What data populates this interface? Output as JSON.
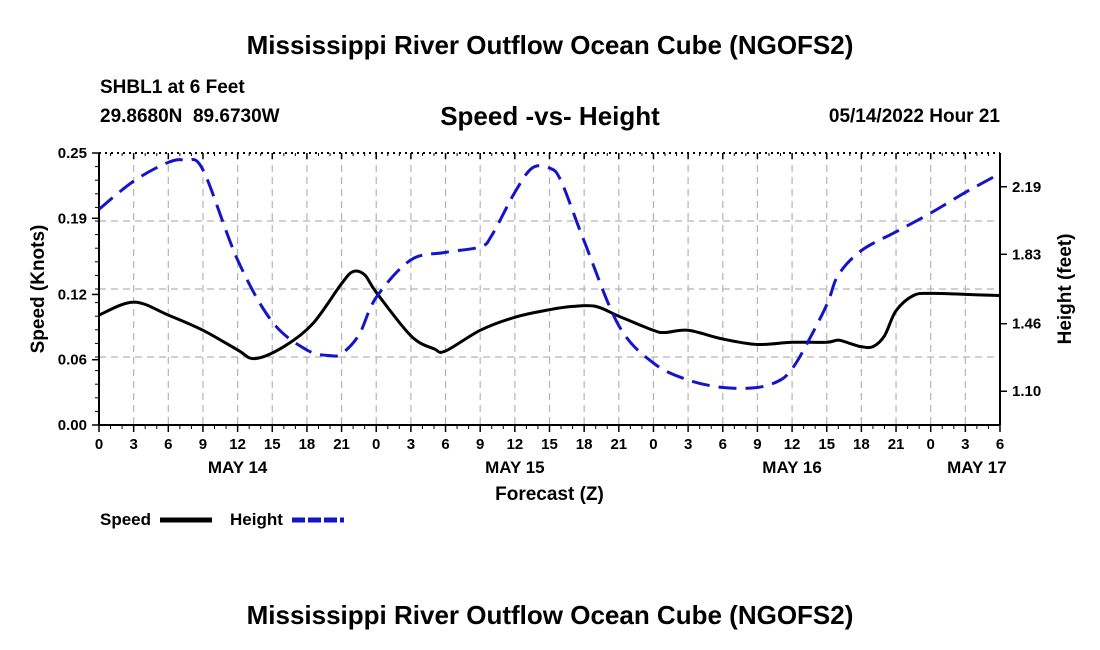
{
  "header": {
    "title": "Mississippi River Outflow Ocean Cube (NGOFS2)",
    "station": "SHBL1 at 6 Feet",
    "coords": "29.8680N  89.6730W",
    "subtitle": "Speed -vs- Height",
    "datetime": "05/14/2022 Hour 21"
  },
  "footer": {
    "title": "Mississippi River Outflow Ocean Cube (NGOFS2)"
  },
  "colors": {
    "speed": "#000000",
    "height": "#1414c8",
    "grid": "#b4b4b4"
  },
  "chart_data": {
    "type": "line",
    "title": "Speed -vs- Height",
    "xlabel": "Forecast (Z)",
    "ylabel": "Speed (Knots)",
    "y2label": "Height (feet)",
    "x_unit": "hours since May 14 00Z",
    "xlim": [
      0,
      78
    ],
    "ylim": [
      0,
      0.25
    ],
    "y2lim": [
      0.92,
      2.37
    ],
    "xticks": [
      0,
      3,
      6,
      9,
      12,
      15,
      18,
      21,
      24,
      27,
      30,
      33,
      36,
      39,
      42,
      45,
      48,
      51,
      54,
      57,
      60,
      63,
      66,
      69,
      72,
      75,
      78
    ],
    "xtick_labels": [
      "0",
      "3",
      "6",
      "9",
      "12",
      "15",
      "18",
      "21",
      "0",
      "3",
      "6",
      "9",
      "12",
      "15",
      "18",
      "21",
      "0",
      "3",
      "6",
      "9",
      "12",
      "15",
      "18",
      "21",
      "0",
      "3",
      "6"
    ],
    "day_labels": [
      {
        "x": 12,
        "label": "MAY 14"
      },
      {
        "x": 36,
        "label": "MAY 15"
      },
      {
        "x": 60,
        "label": "MAY 16"
      },
      {
        "x": 76,
        "label": "MAY 17"
      }
    ],
    "yticks": [
      0.0,
      0.06,
      0.12,
      0.19,
      0.25
    ],
    "ytick_labels": [
      "0.00",
      "0.06",
      "0.12",
      "0.19",
      "0.25"
    ],
    "y2ticks": [
      1.1,
      1.46,
      1.83,
      2.19
    ],
    "y2tick_labels": [
      "1.10",
      "1.46",
      "1.83",
      "2.19"
    ],
    "series": [
      {
        "name": "Speed",
        "axis": "left",
        "style": "solid",
        "x": [
          0,
          3,
          6,
          9,
          12,
          13.5,
          16,
          18.5,
          21,
          22,
          23,
          24,
          27,
          29,
          30,
          33,
          36,
          39,
          41,
          43,
          45,
          48,
          49,
          51,
          54,
          57,
          60,
          63,
          64,
          65,
          66,
          67,
          68,
          69,
          70.5,
          72,
          75,
          78
        ],
        "y": [
          0.101,
          0.113,
          0.101,
          0.087,
          0.069,
          0.061,
          0.072,
          0.093,
          0.13,
          0.141,
          0.138,
          0.122,
          0.082,
          0.07,
          0.068,
          0.087,
          0.099,
          0.106,
          0.109,
          0.109,
          0.1,
          0.087,
          0.085,
          0.087,
          0.079,
          0.074,
          0.076,
          0.076,
          0.078,
          0.075,
          0.072,
          0.072,
          0.082,
          0.105,
          0.119,
          0.121,
          0.12,
          0.119
        ]
      },
      {
        "name": "Height",
        "axis": "right",
        "style": "dashed",
        "x": [
          0,
          3,
          6,
          7.5,
          9,
          12,
          15,
          18,
          20,
          21,
          22.5,
          24,
          27,
          30,
          33,
          34,
          36,
          37.5,
          39,
          40,
          42,
          45,
          48,
          51,
          54,
          57,
          59,
          60,
          61,
          63,
          64,
          66,
          69,
          72,
          75,
          78
        ],
        "y": [
          2.07,
          2.22,
          2.32,
          2.33,
          2.28,
          1.8,
          1.47,
          1.32,
          1.29,
          1.3,
          1.4,
          1.6,
          1.8,
          1.84,
          1.87,
          1.93,
          2.16,
          2.29,
          2.29,
          2.22,
          1.9,
          1.45,
          1.25,
          1.16,
          1.12,
          1.12,
          1.16,
          1.22,
          1.32,
          1.56,
          1.72,
          1.85,
          1.95,
          2.05,
          2.16,
          2.26
        ]
      }
    ],
    "legend": [
      {
        "name": "Speed",
        "style": "solid"
      },
      {
        "name": "Height",
        "style": "dashed"
      }
    ],
    "grid": true
  }
}
